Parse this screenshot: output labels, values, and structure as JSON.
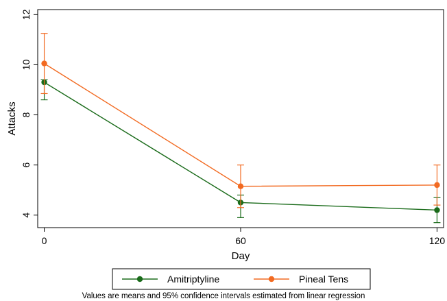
{
  "chart_data": {
    "type": "line",
    "title": "",
    "xlabel": "Day",
    "ylabel": "Attacks",
    "x": [
      0,
      60,
      120
    ],
    "x_ticks": [
      "0",
      "60",
      "120"
    ],
    "y_ticks": [
      "4",
      "6",
      "8",
      "10",
      "12"
    ],
    "xlim": [
      -2,
      122
    ],
    "ylim": [
      3.5,
      12.2
    ],
    "grid": false,
    "legend_position": "bottom",
    "series": [
      {
        "name": "Amitriptyline",
        "color": "#1a6b1a",
        "values": [
          9.3,
          4.5,
          4.2
        ],
        "ci_lower": [
          8.6,
          3.9,
          3.7
        ],
        "ci_upper": [
          9.4,
          4.8,
          4.7
        ]
      },
      {
        "name": "Pineal Tens",
        "color": "#f26a21",
        "values": [
          10.05,
          5.15,
          5.2
        ],
        "ci_lower": [
          8.85,
          4.3,
          4.4
        ],
        "ci_upper": [
          11.25,
          6.0,
          6.0
        ]
      }
    ],
    "note": "Values are means and 95% confidence intervals estimated from linear regression"
  }
}
